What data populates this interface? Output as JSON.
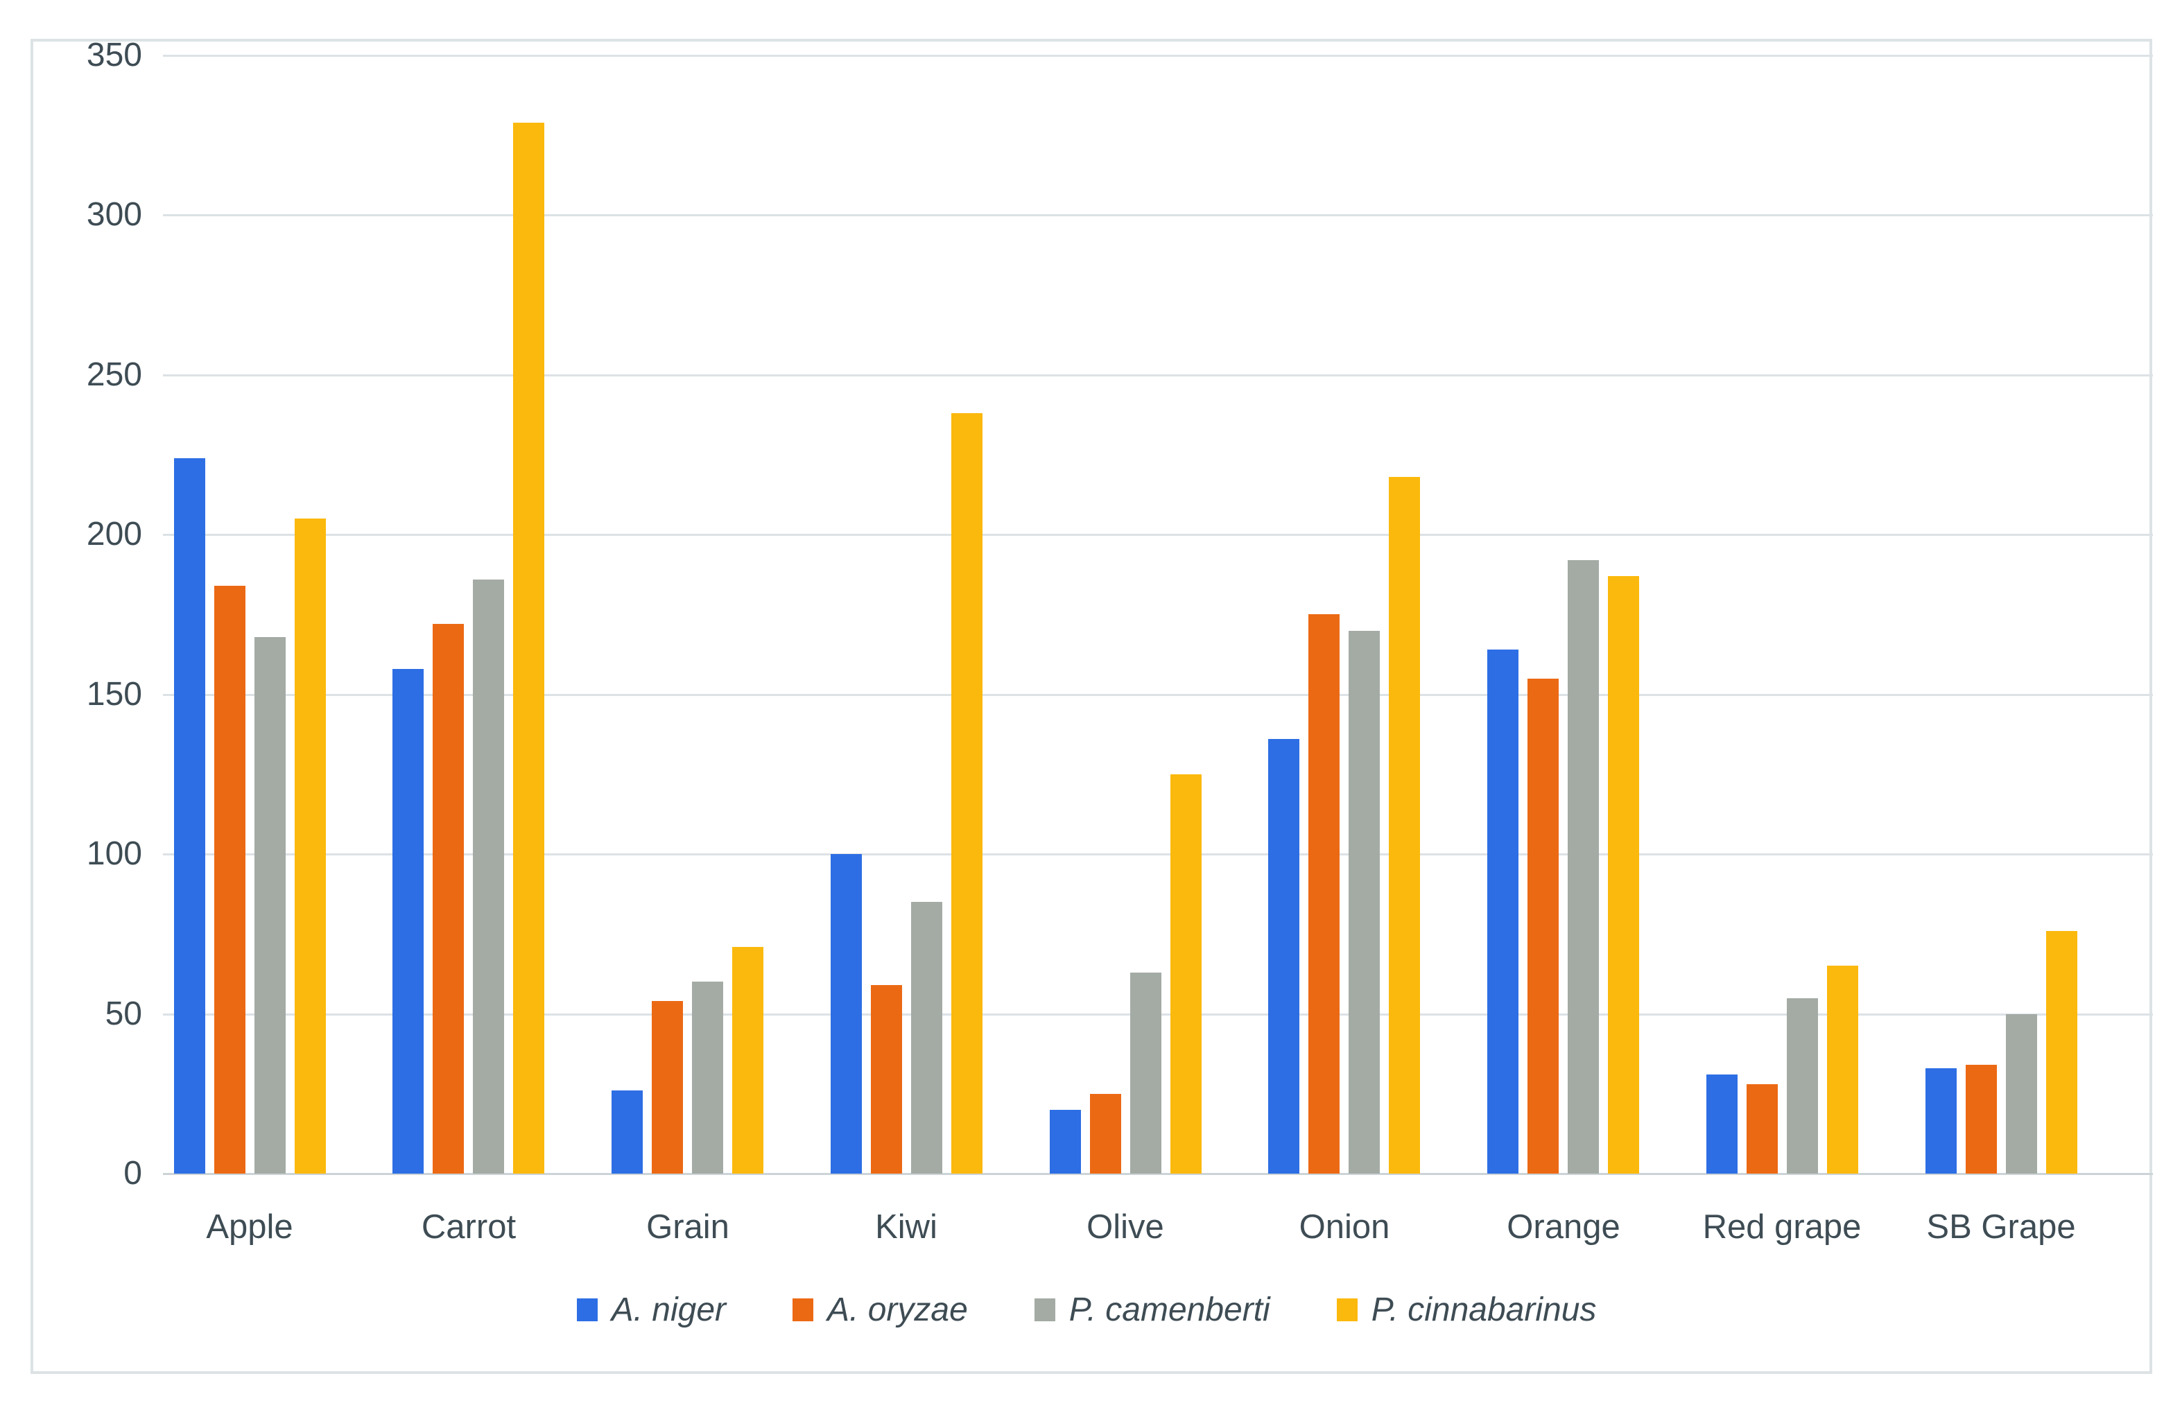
{
  "chart_data": {
    "type": "bar",
    "title": "",
    "xlabel": "",
    "ylabel": "",
    "categories": [
      "Apple",
      "Carrot",
      "Grain",
      "Kiwi",
      "Olive",
      "Onion",
      "Orange",
      "Red grape",
      "SB Grape"
    ],
    "series": [
      {
        "name": "A. niger",
        "color": "#2d6ee4",
        "values": [
          224,
          158,
          26,
          100,
          20,
          136,
          164,
          31,
          33
        ]
      },
      {
        "name": "A. oryzae",
        "color": "#ec6914",
        "values": [
          184,
          172,
          54,
          59,
          25,
          175,
          155,
          28,
          34
        ]
      },
      {
        "name": "P. camenberti",
        "color": "#a4aba5",
        "values": [
          168,
          186,
          60,
          85,
          63,
          170,
          192,
          55,
          50
        ]
      },
      {
        "name": "P. cinnabarinus",
        "color": "#fbb90d",
        "values": [
          205,
          329,
          71,
          238,
          125,
          218,
          187,
          65,
          76
        ]
      }
    ],
    "ylim": [
      0,
      350
    ],
    "ytick_step": 50,
    "y_tick_labels": [
      "350",
      "300",
      "250",
      "200",
      "150",
      "100",
      "50",
      "0"
    ],
    "grid": true,
    "legend_position": "bottom",
    "colors": {
      "gridline": "#dce2e5",
      "axis_text": "#3e4c54",
      "frame_border": "#dde3e5",
      "background": "#ffffff"
    }
  }
}
